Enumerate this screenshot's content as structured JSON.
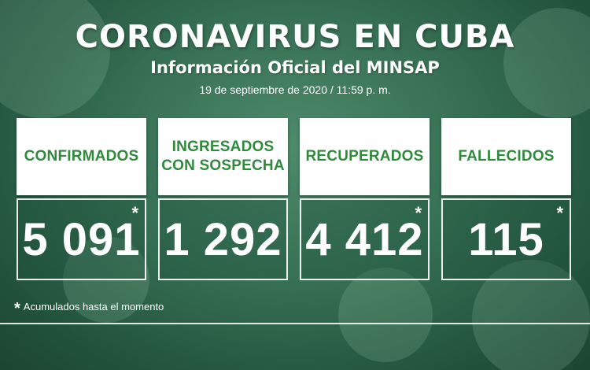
{
  "header": {
    "title": "CORONAVIRUS EN CUBA",
    "subtitle": "Información Oficial del MINSAP",
    "date": "19 de septiembre de 2020 / 11:59 p. m."
  },
  "cards": [
    {
      "label_lines": [
        "CONFIRMADOS"
      ],
      "value": "5 091",
      "starred": true,
      "star": "*"
    },
    {
      "label_lines": [
        "INGRESADOS",
        "CON SOSPECHA"
      ],
      "value": "1 292",
      "starred": false
    },
    {
      "label_lines": [
        "RECUPERADOS"
      ],
      "value": "4 412",
      "starred": true,
      "star": "*"
    },
    {
      "label_lines": [
        "FALLECIDOS"
      ],
      "value": "115",
      "starred": true,
      "star": "*"
    }
  ],
  "footnote": {
    "star": "*",
    "text": "Acumulados hasta el momento"
  },
  "colors": {
    "label_green": "#2f8a3c",
    "background": "#356e52"
  }
}
